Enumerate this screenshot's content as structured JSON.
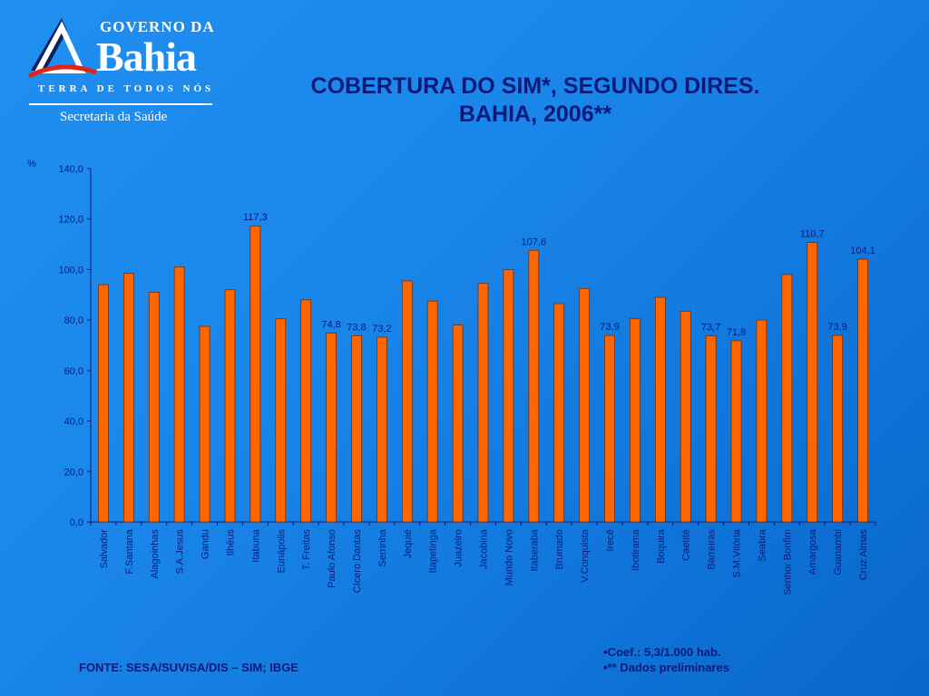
{
  "header": {
    "logo": {
      "governo": "GOVERNO DA",
      "bahia": "Bahia",
      "tagline": "TERRA DE TODOS NÓS",
      "secretaria": "Secretaria da Saúde"
    },
    "title_line1": "COBERTURA DO SIM*, SEGUNDO DIRES.",
    "title_line2": "BAHIA, 2006**"
  },
  "colors": {
    "bar": "#ff6600",
    "bar_edge": "#7a2a00",
    "text": "#0b1a7a",
    "axis": "#0b1a7a"
  },
  "chart_data": {
    "type": "bar",
    "ylabel": "%",
    "ylim": [
      0,
      140
    ],
    "yticks": [
      "0,0",
      "20,0",
      "40,0",
      "60,0",
      "80,0",
      "100,0",
      "120,0",
      "140,0"
    ],
    "categories": [
      "Salvador",
      "F.Santana",
      "Alagoinhas",
      "S.A.Jesus",
      "Gandu",
      "Ilhéus",
      "Itabuna",
      "Eunápolis",
      "T. Freitas",
      "Paulo Afonso",
      "Cícero Dantas",
      "Serrinha",
      "Jequié",
      "Itapetinga",
      "Juazeiro",
      "Jacobina",
      "Mundo Novo",
      "Itaberaba",
      "Brumado",
      "V.Conquista",
      "Irecê",
      "Ibotirama",
      "Boquira",
      "Caetité",
      "Barreiras",
      "S.M.Vitória",
      "Seabra",
      "Senhor Bonfim",
      "Amargosa",
      "Guanambi",
      "Cruz Almas"
    ],
    "values": [
      94.0,
      98.5,
      91.0,
      101.0,
      77.5,
      92.0,
      117.3,
      80.5,
      88.0,
      74.8,
      73.8,
      73.2,
      95.5,
      87.5,
      78.0,
      94.5,
      100.0,
      107.6,
      86.5,
      92.5,
      73.9,
      80.5,
      89.0,
      83.5,
      73.7,
      71.8,
      80.0,
      98.0,
      110.7,
      73.9,
      104.1
    ],
    "data_labels": [
      "",
      "",
      "",
      "",
      "",
      "",
      "117,3",
      "",
      "",
      "74,8",
      "73,8",
      "73,2",
      "",
      "",
      "",
      "",
      "",
      "107,6",
      "",
      "",
      "73,9",
      "",
      "",
      "",
      "73,7",
      "71,8",
      "",
      "",
      "110,7",
      "73,9",
      "104,1"
    ],
    "grid": false,
    "legend": "none"
  },
  "footer": {
    "fonte": "FONTE: SESA/SUVISA/DIS – SIM; IBGE",
    "note1": "•Coef.: 5,3/1.000 hab.",
    "note2": "•** Dados preliminares"
  }
}
